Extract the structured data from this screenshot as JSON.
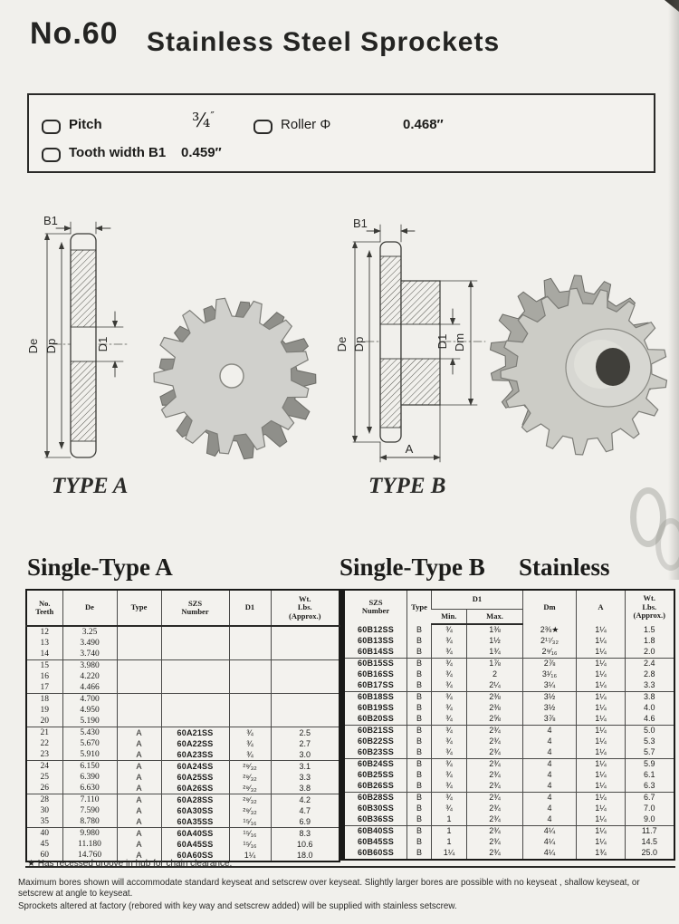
{
  "page": {
    "catalog_no": "No.60",
    "title": "Stainless Steel Sprockets"
  },
  "specs": {
    "pitch_label": "Pitch",
    "pitch_value": "¾",
    "pitch_unit": "″",
    "roller_label": "Roller Φ",
    "roller_value": "0.468″",
    "tooth_width_label": "Tooth width B1",
    "tooth_width_value": "0.459″"
  },
  "diagrams": {
    "type_a": {
      "name": "TYPE A",
      "dim_b1": "B1",
      "dim_de": "De",
      "dim_dp": "Dp",
      "dim_d1": "D1"
    },
    "type_b": {
      "name": "TYPE B",
      "dim_b1": "B1",
      "dim_de": "De",
      "dim_dp": "Dp",
      "dim_d1": "D1",
      "dim_dm": "Dm",
      "dim_a": "A"
    }
  },
  "tables": {
    "left_title": "Single-Type A",
    "right_title": "Single-Type B",
    "material_title": "Stainless",
    "left_headers": [
      "No.\nTeeth",
      "De",
      "Type",
      "SZS\nNumber",
      "D1",
      "Wt.\nLbs.\n(Approx.)"
    ],
    "right_headers": {
      "szs": "SZS\nNumber",
      "type": "Type",
      "d1": "D1",
      "min": "Min.",
      "max": "Max.",
      "dm": "Dm",
      "a": "A",
      "wt": "Wt.\nLbs.\n(Approx.)"
    },
    "rows_a": [
      [
        "12",
        "3.25",
        "",
        "",
        "",
        ""
      ],
      [
        "13",
        "3.490",
        "",
        "",
        "",
        ""
      ],
      [
        "14",
        "3.740",
        "",
        "",
        "",
        ""
      ],
      [
        "15",
        "3.980",
        "",
        "",
        "",
        ""
      ],
      [
        "16",
        "4.220",
        "",
        "",
        "",
        ""
      ],
      [
        "17",
        "4.466",
        "",
        "",
        "",
        ""
      ],
      [
        "18",
        "4.700",
        "",
        "",
        "",
        ""
      ],
      [
        "19",
        "4.950",
        "",
        "",
        "",
        ""
      ],
      [
        "20",
        "5.190",
        "",
        "",
        "",
        ""
      ],
      [
        "21",
        "5.430",
        "A",
        "60A21SS",
        "¾",
        "2.5"
      ],
      [
        "22",
        "5.670",
        "A",
        "60A22SS",
        "¾",
        "2.7"
      ],
      [
        "23",
        "5.910",
        "A",
        "60A23SS",
        "¾",
        "3.0"
      ],
      [
        "24",
        "6.150",
        "A",
        "60A24SS",
        "²⁹⁄₃₂",
        "3.1"
      ],
      [
        "25",
        "6.390",
        "A",
        "60A25SS",
        "²⁹⁄₃₂",
        "3.3"
      ],
      [
        "26",
        "6.630",
        "A",
        "60A26SS",
        "²⁹⁄₃₂",
        "3.8"
      ],
      [
        "28",
        "7.110",
        "A",
        "60A28SS",
        "²⁹⁄₃₂",
        "4.2"
      ],
      [
        "30",
        "7.590",
        "A",
        "60A30SS",
        "²⁹⁄₃₂",
        "4.7"
      ],
      [
        "35",
        "8.780",
        "A",
        "60A35SS",
        "¹⁵⁄₁₆",
        "6.9"
      ],
      [
        "40",
        "9.980",
        "A",
        "60A40SS",
        "¹⁵⁄₁₆",
        "8.3"
      ],
      [
        "45",
        "11.180",
        "A",
        "60A45SS",
        "¹⁵⁄₁₆",
        "10.6"
      ],
      [
        "60",
        "14.760",
        "A",
        "60A60SS",
        "1¼",
        "18.0"
      ]
    ],
    "rows_b": [
      [
        "60B12SS",
        "B",
        "¾",
        "1⅜",
        "2⅜★",
        "1¼",
        "1.5"
      ],
      [
        "60B13SS",
        "B",
        "¾",
        "1½",
        "2¹⁷⁄₃₂",
        "1¼",
        "1.8"
      ],
      [
        "60B14SS",
        "B",
        "¾",
        "1¾",
        "2⁹⁄₁₆",
        "1¼",
        "2.0"
      ],
      [
        "60B15SS",
        "B",
        "¾",
        "1⅞",
        "2⅞",
        "1¼",
        "2.4"
      ],
      [
        "60B16SS",
        "B",
        "¾",
        "2",
        "3¹⁄₁₆",
        "1¼",
        "2.8"
      ],
      [
        "60B17SS",
        "B",
        "¾",
        "2¼",
        "3¼",
        "1¼",
        "3.3"
      ],
      [
        "60B18SS",
        "B",
        "¾",
        "2⅜",
        "3½",
        "1¼",
        "3.8"
      ],
      [
        "60B19SS",
        "B",
        "¾",
        "2⅜",
        "3½",
        "1¼",
        "4.0"
      ],
      [
        "60B20SS",
        "B",
        "¾",
        "2⅝",
        "3⅞",
        "1¼",
        "4.6"
      ],
      [
        "60B21SS",
        "B",
        "¾",
        "2¾",
        "4",
        "1¼",
        "5.0"
      ],
      [
        "60B22SS",
        "B",
        "¾",
        "2¾",
        "4",
        "1¼",
        "5.3"
      ],
      [
        "60B23SS",
        "B",
        "¾",
        "2¾",
        "4",
        "1¼",
        "5.7"
      ],
      [
        "60B24SS",
        "B",
        "¾",
        "2¾",
        "4",
        "1¼",
        "5.9"
      ],
      [
        "60B25SS",
        "B",
        "¾",
        "2¾",
        "4",
        "1¼",
        "6.1"
      ],
      [
        "60B26SS",
        "B",
        "¾",
        "2¾",
        "4",
        "1¼",
        "6.3"
      ],
      [
        "60B28SS",
        "B",
        "¾",
        "2¾",
        "4",
        "1¼",
        "6.7"
      ],
      [
        "60B30SS",
        "B",
        "¾",
        "2¾",
        "4",
        "1¼",
        "7.0"
      ],
      [
        "60B36SS",
        "B",
        "1",
        "2¾",
        "4",
        "1¼",
        "9.0"
      ],
      [
        "60B40SS",
        "B",
        "1",
        "2¾",
        "4¼",
        "1¼",
        "11.7"
      ],
      [
        "60B45SS",
        "B",
        "1",
        "2¾",
        "4¼",
        "1¼",
        "14.5"
      ],
      [
        "60B60SS",
        "B",
        "1¼",
        "2¾",
        "4¼",
        "1¾",
        "25.0"
      ]
    ]
  },
  "footnotes": {
    "star_note": "★  Has recessed  groove in hub for chain clearance.",
    "para1": "Maximum bores shown will accommodate standard keyseat and setscrew over keyseat. Slightly larger bores are possible with no keyseat , shallow keyseat, or setscrew at angle to keyseat.",
    "para2": "Sprockets altered at factory (rebored with key way and setscrew added) will be supplied with stainless setscrew."
  },
  "colors": {
    "paper": "#f1f0ec",
    "ink": "#1c1c1a",
    "steel_light": "#d0d0cc",
    "steel_dark": "#8f8f8a"
  }
}
